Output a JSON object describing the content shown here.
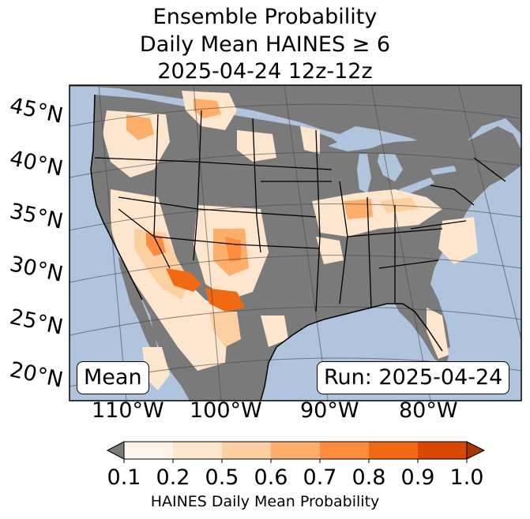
{
  "title": {
    "line1": "Ensemble Probability",
    "line2": "Daily Mean HAINES ≥ 6",
    "line3": "2025-04-24 12z-12z"
  },
  "map": {
    "ocean_color": "#b0c4de",
    "land_color": "#7a7a7a",
    "lat_labels": [
      "45°N",
      "40°N",
      "35°N",
      "30°N",
      "25°N",
      "20°N"
    ],
    "lon_labels": [
      "110°W",
      "100°W",
      "90°W",
      "80°W"
    ],
    "stat_box": "Mean",
    "run_box": "Run: 2025-04-24"
  },
  "colorbar": {
    "label": "HAINES Daily Mean Probability",
    "ticks": [
      "0.1",
      "0.2",
      "0.5",
      "0.6",
      "0.7",
      "0.8",
      "0.9",
      "1.0"
    ],
    "under_color": "#7a7a7a",
    "colors": [
      "#fff5eb",
      "#fee6ce",
      "#fdd0a2",
      "#fdae6b",
      "#fd8d3c",
      "#f16913",
      "#d94801",
      "#a63603"
    ]
  }
}
